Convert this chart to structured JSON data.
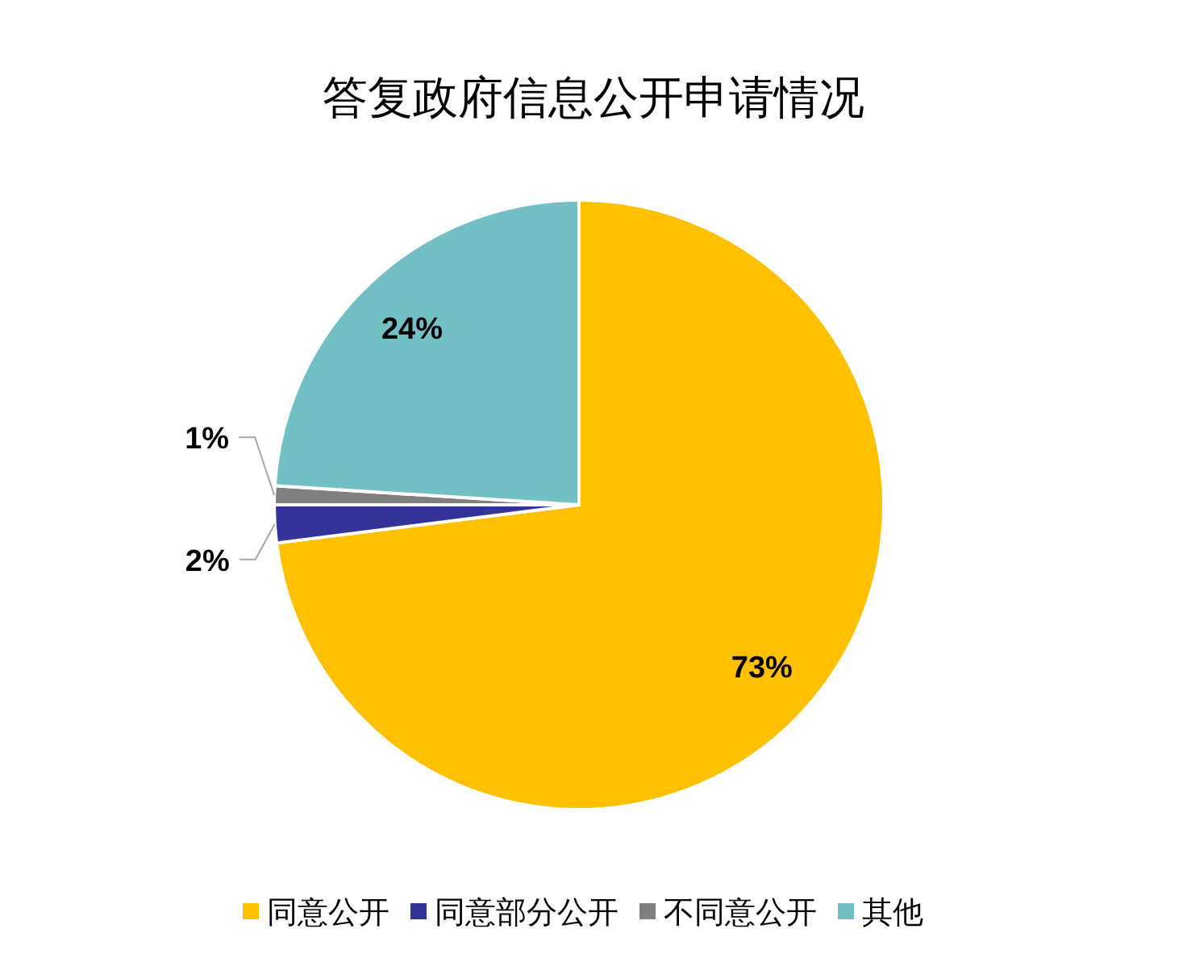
{
  "chart_data": {
    "type": "pie",
    "title": "答复政府信息公开申请情况",
    "categories": [
      "同意公开",
      "同意部分公开",
      "不同意公开",
      "其他"
    ],
    "values": [
      73,
      2,
      1,
      24
    ],
    "colors": [
      "#ffc000",
      "#333399",
      "#808080",
      "#72bfc5"
    ],
    "value_labels": [
      "73%",
      "2%",
      "1%",
      "24%"
    ],
    "legend": "bottom"
  }
}
